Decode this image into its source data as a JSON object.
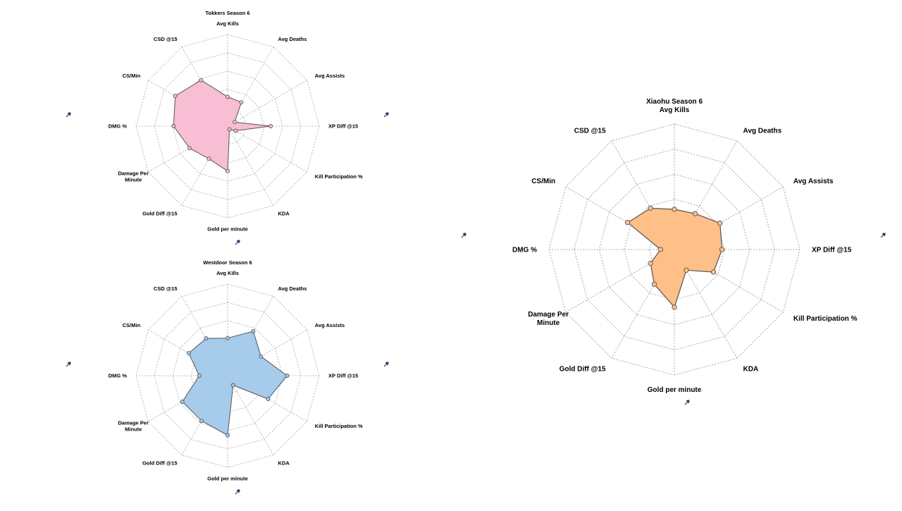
{
  "page": {
    "background": "#ffffff"
  },
  "chart_data": [
    {
      "type": "radar",
      "title": "Tokkers Season 6",
      "categories": [
        "Avg Kills",
        "Avg Deaths",
        "Avg Assists",
        "XP Diff @15",
        "Kill Participation %",
        "KDA",
        "Gold per minute",
        "Gold Diff @15",
        "Damage Per Minute",
        "DMG %",
        "CS/Min",
        "CSD @15"
      ],
      "rlim": [
        0,
        1
      ],
      "grid": true,
      "fill_color": "#f8bed3",
      "line_color": "#555555",
      "series": [
        {
          "values": [
            0.32,
            0.3,
            0.09,
            0.47,
            0.1,
            0.04,
            0.49,
            0.41,
            0.48,
            0.59,
            0.66,
            0.58
          ]
        }
      ]
    },
    {
      "type": "radar",
      "title": "Westdoor Season 6",
      "categories": [
        "Avg Kills",
        "Avg Deaths",
        "Avg Assists",
        "XP Diff @15",
        "Kill Participation %",
        "KDA",
        "Gold per minute",
        "Gold Diff @15",
        "Damage Per Minute",
        "DMG %",
        "CS/Min",
        "CSD @15"
      ],
      "rlim": [
        0,
        1
      ],
      "grid": true,
      "fill_color": "#a6cbeb",
      "line_color": "#555555",
      "series": [
        {
          "values": [
            0.41,
            0.56,
            0.42,
            0.65,
            0.51,
            0.12,
            0.65,
            0.57,
            0.57,
            0.31,
            0.49,
            0.47
          ]
        }
      ]
    },
    {
      "type": "radar",
      "title": "Xiaohu Season 6",
      "categories": [
        "Avg Kills",
        "Avg Deaths",
        "Avg Assists",
        "XP Diff @15",
        "Kill Participation %",
        "KDA",
        "Gold per minute",
        "Gold Diff @15",
        "Damage Per Minute",
        "DMG %",
        "CS/Min",
        "CSD @15"
      ],
      "rlim": [
        0,
        1
      ],
      "grid": true,
      "fill_color": "#fec088",
      "line_color": "#555555",
      "series": [
        {
          "values": [
            0.32,
            0.33,
            0.42,
            0.38,
            0.36,
            0.19,
            0.46,
            0.32,
            0.22,
            0.11,
            0.43,
            0.38
          ]
        }
      ]
    }
  ],
  "pin_icon": "pushpin-icon"
}
